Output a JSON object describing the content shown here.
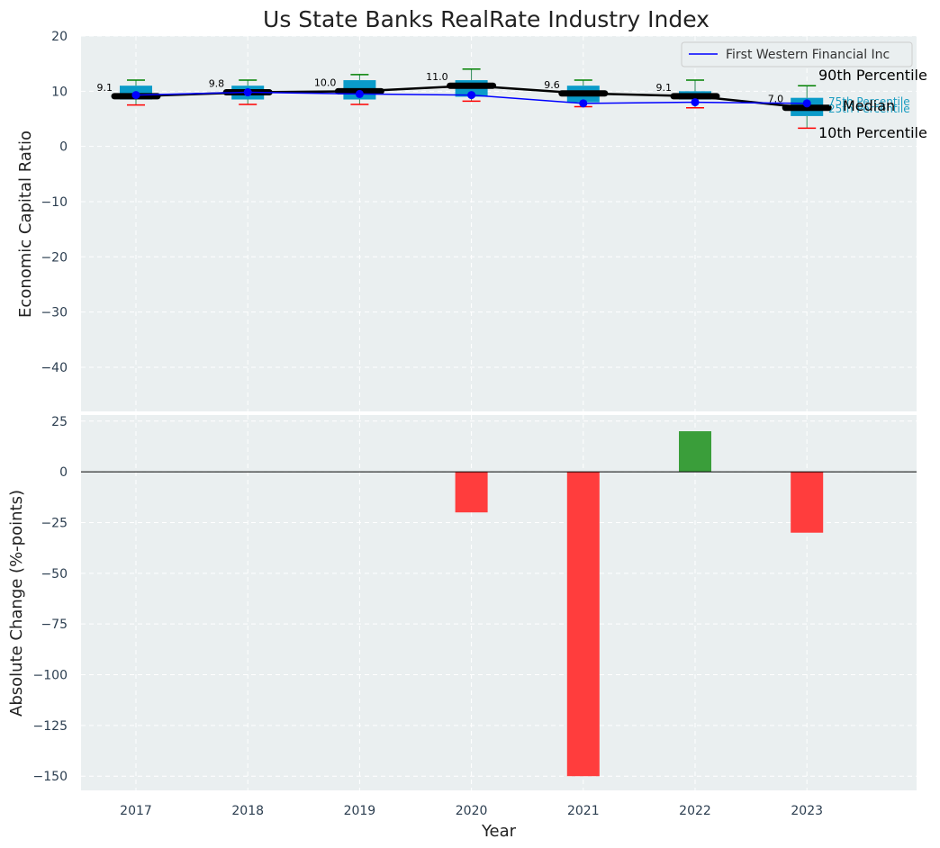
{
  "chart_data": [
    {
      "type": "box",
      "title": "Us State Banks RealRate Industry Index",
      "xlabel": "",
      "ylabel": "Economic Capital Ratio",
      "ylim": [
        -48,
        20
      ],
      "yticks": [
        20,
        10,
        0,
        -10,
        -20,
        -30,
        -40
      ],
      "categories": [
        "2017",
        "2018",
        "2019",
        "2020",
        "2021",
        "2022",
        "2023"
      ],
      "boxes": [
        {
          "year": "2017",
          "p10": 7.5,
          "q1": 8.5,
          "median": 9.1,
          "q3": 11.0,
          "p90": 12.0
        },
        {
          "year": "2018",
          "p10": 7.6,
          "q1": 8.5,
          "median": 9.8,
          "q3": 11.0,
          "p90": 12.0
        },
        {
          "year": "2019",
          "p10": 7.6,
          "q1": 8.5,
          "median": 10.0,
          "q3": 12.0,
          "p90": 13.0
        },
        {
          "year": "2020",
          "p10": 8.2,
          "q1": 9.0,
          "median": 11.0,
          "q3": 12.0,
          "p90": 14.0
        },
        {
          "year": "2021",
          "p10": 7.2,
          "q1": 8.0,
          "median": 9.6,
          "q3": 11.0,
          "p90": 12.0
        },
        {
          "year": "2022",
          "p10": 7.0,
          "q1": 8.5,
          "median": 9.1,
          "q3": 10.0,
          "p90": 12.0
        },
        {
          "year": "2023",
          "p10": 3.3,
          "q1": 5.5,
          "median": 7.0,
          "q3": 8.8,
          "p90": 11.0
        }
      ],
      "median_labels": [
        "9.1",
        "9.8",
        "10.0",
        "11.0",
        "9.6",
        "9.1",
        "7.0"
      ],
      "series": [
        {
          "name": "First Western Financial Inc",
          "values": [
            9.3,
            9.8,
            9.5,
            9.3,
            7.8,
            8.0,
            7.8
          ],
          "color": "#0000ff"
        }
      ],
      "median_line_color": "#000000",
      "box_color": "#0a9bc9",
      "legend": {
        "position": "top-right",
        "label": "First Western Financial Inc"
      },
      "percentile_labels": {
        "p90": "90th Percentile",
        "p75": "75th Percentile",
        "median": "Median",
        "p25": "25th Percentile",
        "p10": "10th Percentile"
      }
    },
    {
      "type": "bar",
      "title": "",
      "xlabel": "Year",
      "ylabel": "Absolute Change (%-points)",
      "ylim": [
        -157,
        28
      ],
      "yticks": [
        25,
        0,
        -25,
        -50,
        -75,
        -100,
        -125,
        -150
      ],
      "categories": [
        "2017",
        "2018",
        "2019",
        "2020",
        "2021",
        "2022",
        "2023"
      ],
      "values": [
        0,
        0,
        0,
        -20,
        -150,
        20,
        -30
      ],
      "positive_color": "#3a9e3a",
      "negative_color": "#ff3d3d"
    }
  ]
}
